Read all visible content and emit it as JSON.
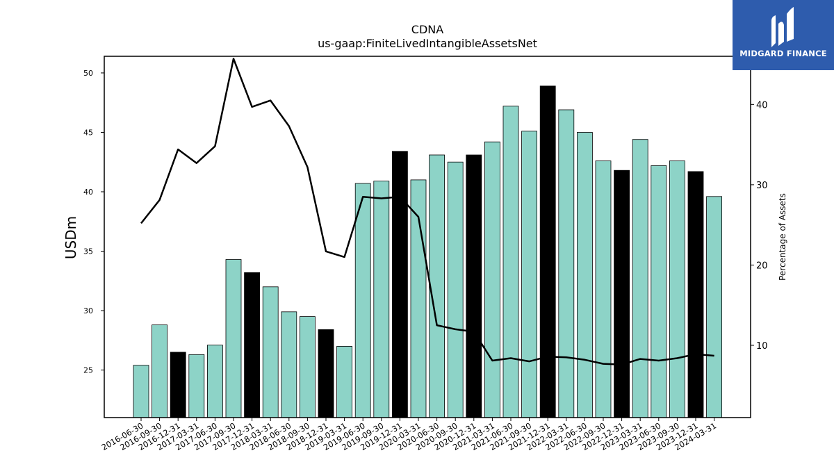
{
  "brand": {
    "name": "MIDGARD FINANCE",
    "bg_color": "#2e5cad",
    "icon": "midgard-logo-icon"
  },
  "chart_data": {
    "type": "bar",
    "title": "CDNA",
    "subtitle": "us-gaap:FiniteLivedIntangibleAssetsNet",
    "ylabel": "USDm",
    "y2label": "Percentage of Assets",
    "ylim": [
      21,
      51.4
    ],
    "y2lim": [
      1,
      46
    ],
    "yticks": [
      25,
      30,
      35,
      40,
      45,
      50
    ],
    "y2ticks": [
      10,
      20,
      30,
      40
    ],
    "categories": [
      "2016-06-30",
      "2016-09-30",
      "2016-12-31",
      "2017-03-31",
      "2017-06-30",
      "2017-09-30",
      "2017-12-31",
      "2018-03-31",
      "2018-06-30",
      "2018-09-30",
      "2018-12-31",
      "2019-03-31",
      "2019-06-30",
      "2019-09-30",
      "2019-12-31",
      "2020-03-31",
      "2020-06-30",
      "2020-09-30",
      "2020-12-31",
      "2021-03-31",
      "2021-06-30",
      "2021-09-30",
      "2021-12-31",
      "2022-03-31",
      "2022-06-30",
      "2022-09-30",
      "2022-12-31",
      "2023-03-31",
      "2023-06-30",
      "2023-09-30",
      "2023-12-31",
      "2024-03-31"
    ],
    "series": [
      {
        "type": "bar",
        "axis": "left",
        "values": [
          25.4,
          28.8,
          26.5,
          26.3,
          27.1,
          34.3,
          33.2,
          32.0,
          29.9,
          29.5,
          28.4,
          27.0,
          40.7,
          40.9,
          43.4,
          41.0,
          43.1,
          42.5,
          43.1,
          44.2,
          47.2,
          45.1,
          48.9,
          46.9,
          45.0,
          42.6,
          41.8,
          44.4,
          42.2,
          42.6,
          41.7,
          39.6
        ]
      },
      {
        "type": "line",
        "axis": "right",
        "values": [
          25.2,
          28.1,
          34.4,
          32.7,
          34.8,
          45.7,
          39.7,
          40.5,
          37.3,
          32.2,
          21.7,
          21.0,
          28.5,
          28.3,
          28.5,
          26.0,
          12.5,
          12.0,
          11.7,
          8.1,
          8.4,
          8.0,
          8.6,
          8.5,
          8.2,
          7.7,
          7.6,
          8.3,
          8.1,
          8.4,
          8.9,
          8.7
        ]
      }
    ],
    "bar_colors": {
      "quarter": "#8dd3c7",
      "year_end": "#000000"
    },
    "line_color": "#000000",
    "grid": false
  }
}
